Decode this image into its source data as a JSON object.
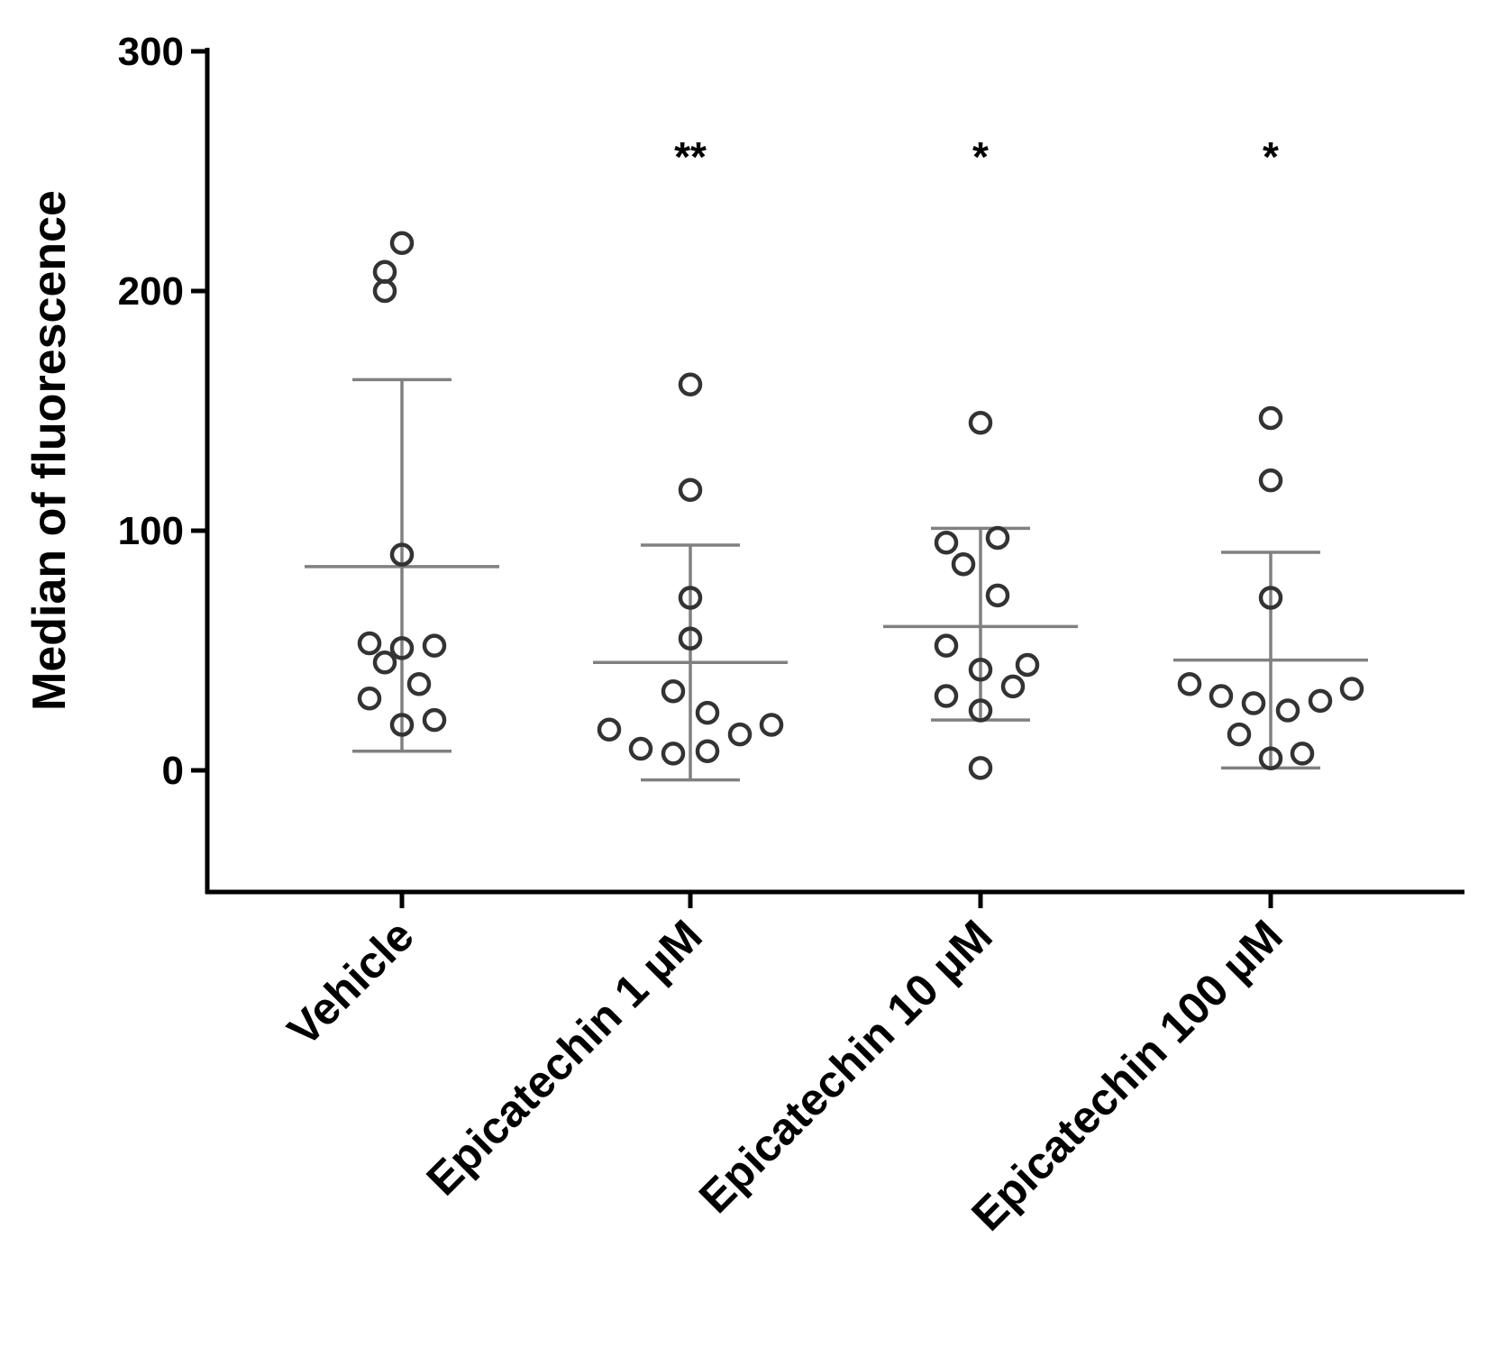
{
  "chart_data": {
    "type": "scatter",
    "title": "",
    "xlabel": "",
    "ylabel": "Median of fluorescence",
    "ylim": [
      -50,
      300
    ],
    "yticks": [
      0,
      100,
      200,
      300
    ],
    "categories": [
      "Vehicle",
      "Epicatechin 1 µM",
      "Epicatechin 10 µM",
      "Epicatechin 100 µM"
    ],
    "significance": [
      "",
      "**",
      "*",
      "*"
    ],
    "colors": {
      "point": "#333333",
      "bar": "#808080",
      "axis": "#000000"
    },
    "series": [
      {
        "name": "Vehicle",
        "points": [
          220,
          208,
          200,
          90,
          53,
          51,
          52,
          45,
          36,
          30,
          21,
          19
        ],
        "mean": 85,
        "sd_low": 8,
        "sd_high": 163
      },
      {
        "name": "Epicatechin 1 µM",
        "points": [
          161,
          117,
          72,
          55,
          33,
          24,
          19,
          17,
          15,
          9,
          8,
          7
        ],
        "mean": 45,
        "sd_low": -4,
        "sd_high": 94
      },
      {
        "name": "Epicatechin 10 µM",
        "points": [
          145,
          97,
          95,
          86,
          73,
          52,
          44,
          42,
          35,
          31,
          25,
          1
        ],
        "mean": 60,
        "sd_low": 21,
        "sd_high": 101
      },
      {
        "name": "Epicatechin 100 µM",
        "points": [
          147,
          121,
          72,
          36,
          34,
          31,
          29,
          28,
          25,
          15,
          7,
          5
        ],
        "mean": 46,
        "sd_low": 1,
        "sd_high": 91
      }
    ]
  }
}
